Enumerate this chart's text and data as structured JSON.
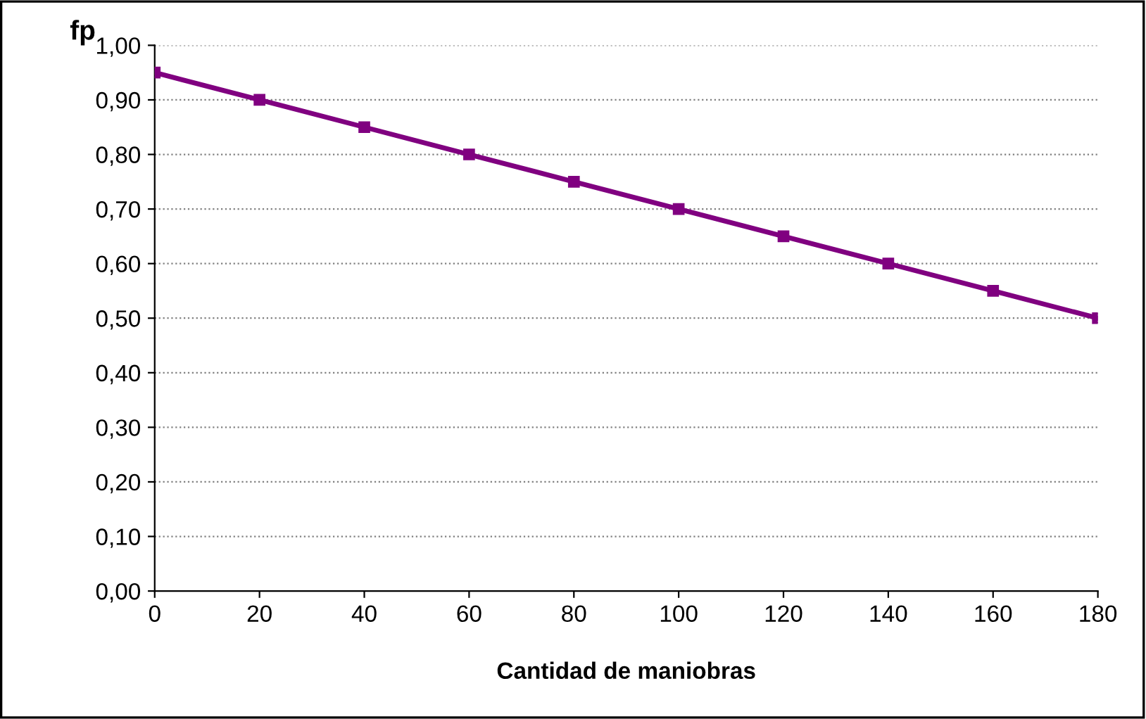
{
  "chart_data": {
    "type": "line",
    "xlabel": "Cantidad de maniobras",
    "ylabel": "fp",
    "x": [
      0,
      20,
      40,
      60,
      80,
      100,
      120,
      140,
      160,
      180
    ],
    "series": [
      {
        "color": "#800080",
        "values": [
          0.95,
          0.9,
          0.85,
          0.8,
          0.75,
          0.7,
          0.65,
          0.6,
          0.55,
          0.5
        ]
      }
    ],
    "xlim": [
      0,
      180
    ],
    "xticks": [
      0,
      20,
      40,
      60,
      80,
      100,
      120,
      140,
      160,
      180
    ],
    "ylim": [
      0,
      1
    ],
    "yticks": [
      {
        "value": 0,
        "label": "0,00"
      },
      {
        "value": 0.1,
        "label": "0,10"
      },
      {
        "value": 0.2,
        "label": "0,20"
      },
      {
        "value": 0.3,
        "label": "0,30"
      },
      {
        "value": 0.4,
        "label": "0,40"
      },
      {
        "value": 0.5,
        "label": "0,50"
      },
      {
        "value": 0.6,
        "label": "0,60"
      },
      {
        "value": 0.7,
        "label": "0,70"
      },
      {
        "value": 0.8,
        "label": "0,80"
      },
      {
        "value": 0.9,
        "label": "0,90"
      },
      {
        "value": 1.0,
        "label": "1,00"
      }
    ],
    "grid": "y",
    "marker": "square",
    "line_style": "solid",
    "legend": false
  }
}
